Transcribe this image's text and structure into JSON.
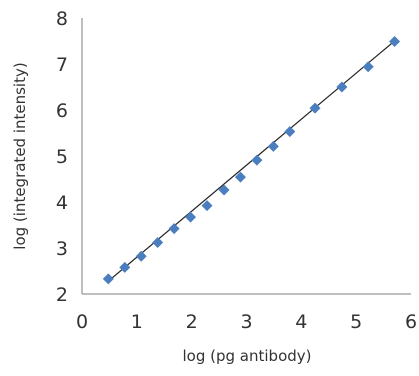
{
  "chart_data": {
    "type": "scatter",
    "title": "",
    "xlabel": "log (pg antibody)",
    "ylabel": "log (integrated intensity)",
    "xlim": [
      0,
      6
    ],
    "ylim": [
      2,
      8
    ],
    "x_ticks": [
      "0",
      "1",
      "2",
      "3",
      "4",
      "5",
      "6"
    ],
    "y_ticks": [
      "2",
      "3",
      "4",
      "5",
      "6",
      "7",
      "8"
    ],
    "grid": false,
    "legend": "none",
    "marker": "diamond",
    "series": [
      {
        "x": [
          0.48,
          0.78,
          1.08,
          1.38,
          1.68,
          1.98,
          2.28,
          2.59,
          2.89,
          3.19,
          3.49,
          3.79,
          4.25,
          4.74,
          5.22,
          5.7
        ],
        "y": [
          2.33,
          2.58,
          2.82,
          3.12,
          3.42,
          3.67,
          3.92,
          4.26,
          4.54,
          4.91,
          5.21,
          5.53,
          6.04,
          6.5,
          6.94,
          7.49
        ]
      }
    ],
    "trendline": {
      "type": "linear",
      "x": [
        0.48,
        5.7
      ],
      "y": [
        2.28,
        7.5
      ]
    },
    "colors": {
      "marker": "#4a7ebf",
      "trendline": "#222222",
      "axis": "#7f7f7f"
    }
  }
}
